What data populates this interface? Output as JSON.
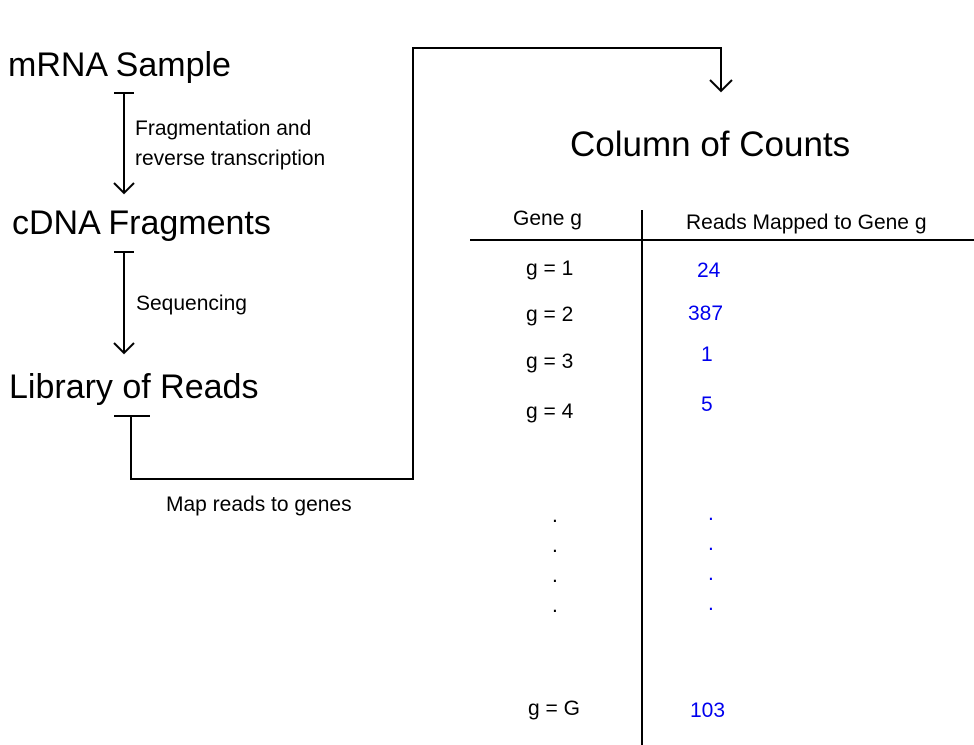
{
  "pipeline": {
    "stages": [
      {
        "label": "mRNA Sample"
      },
      {
        "label": "cDNA Fragments"
      },
      {
        "label": "Library of Reads"
      }
    ],
    "steps": [
      {
        "label": "Fragmentation and reverse transcription"
      },
      {
        "label": "Sequencing"
      }
    ],
    "map_step": {
      "label": "Map reads to genes"
    }
  },
  "counts_table": {
    "title": "Column of Counts",
    "headers": [
      "Gene g",
      "Reads Mapped to Gene g"
    ],
    "rows": [
      {
        "gene": "g = 1",
        "count": "24"
      },
      {
        "gene": "g = 2",
        "count": "387"
      },
      {
        "gene": "g = 3",
        "count": "1"
      },
      {
        "gene": "g = 4",
        "count": "5"
      },
      {
        "gene": "g = G",
        "count": "103"
      }
    ],
    "ellipsis": ".",
    "count_color": "#0000ee"
  }
}
